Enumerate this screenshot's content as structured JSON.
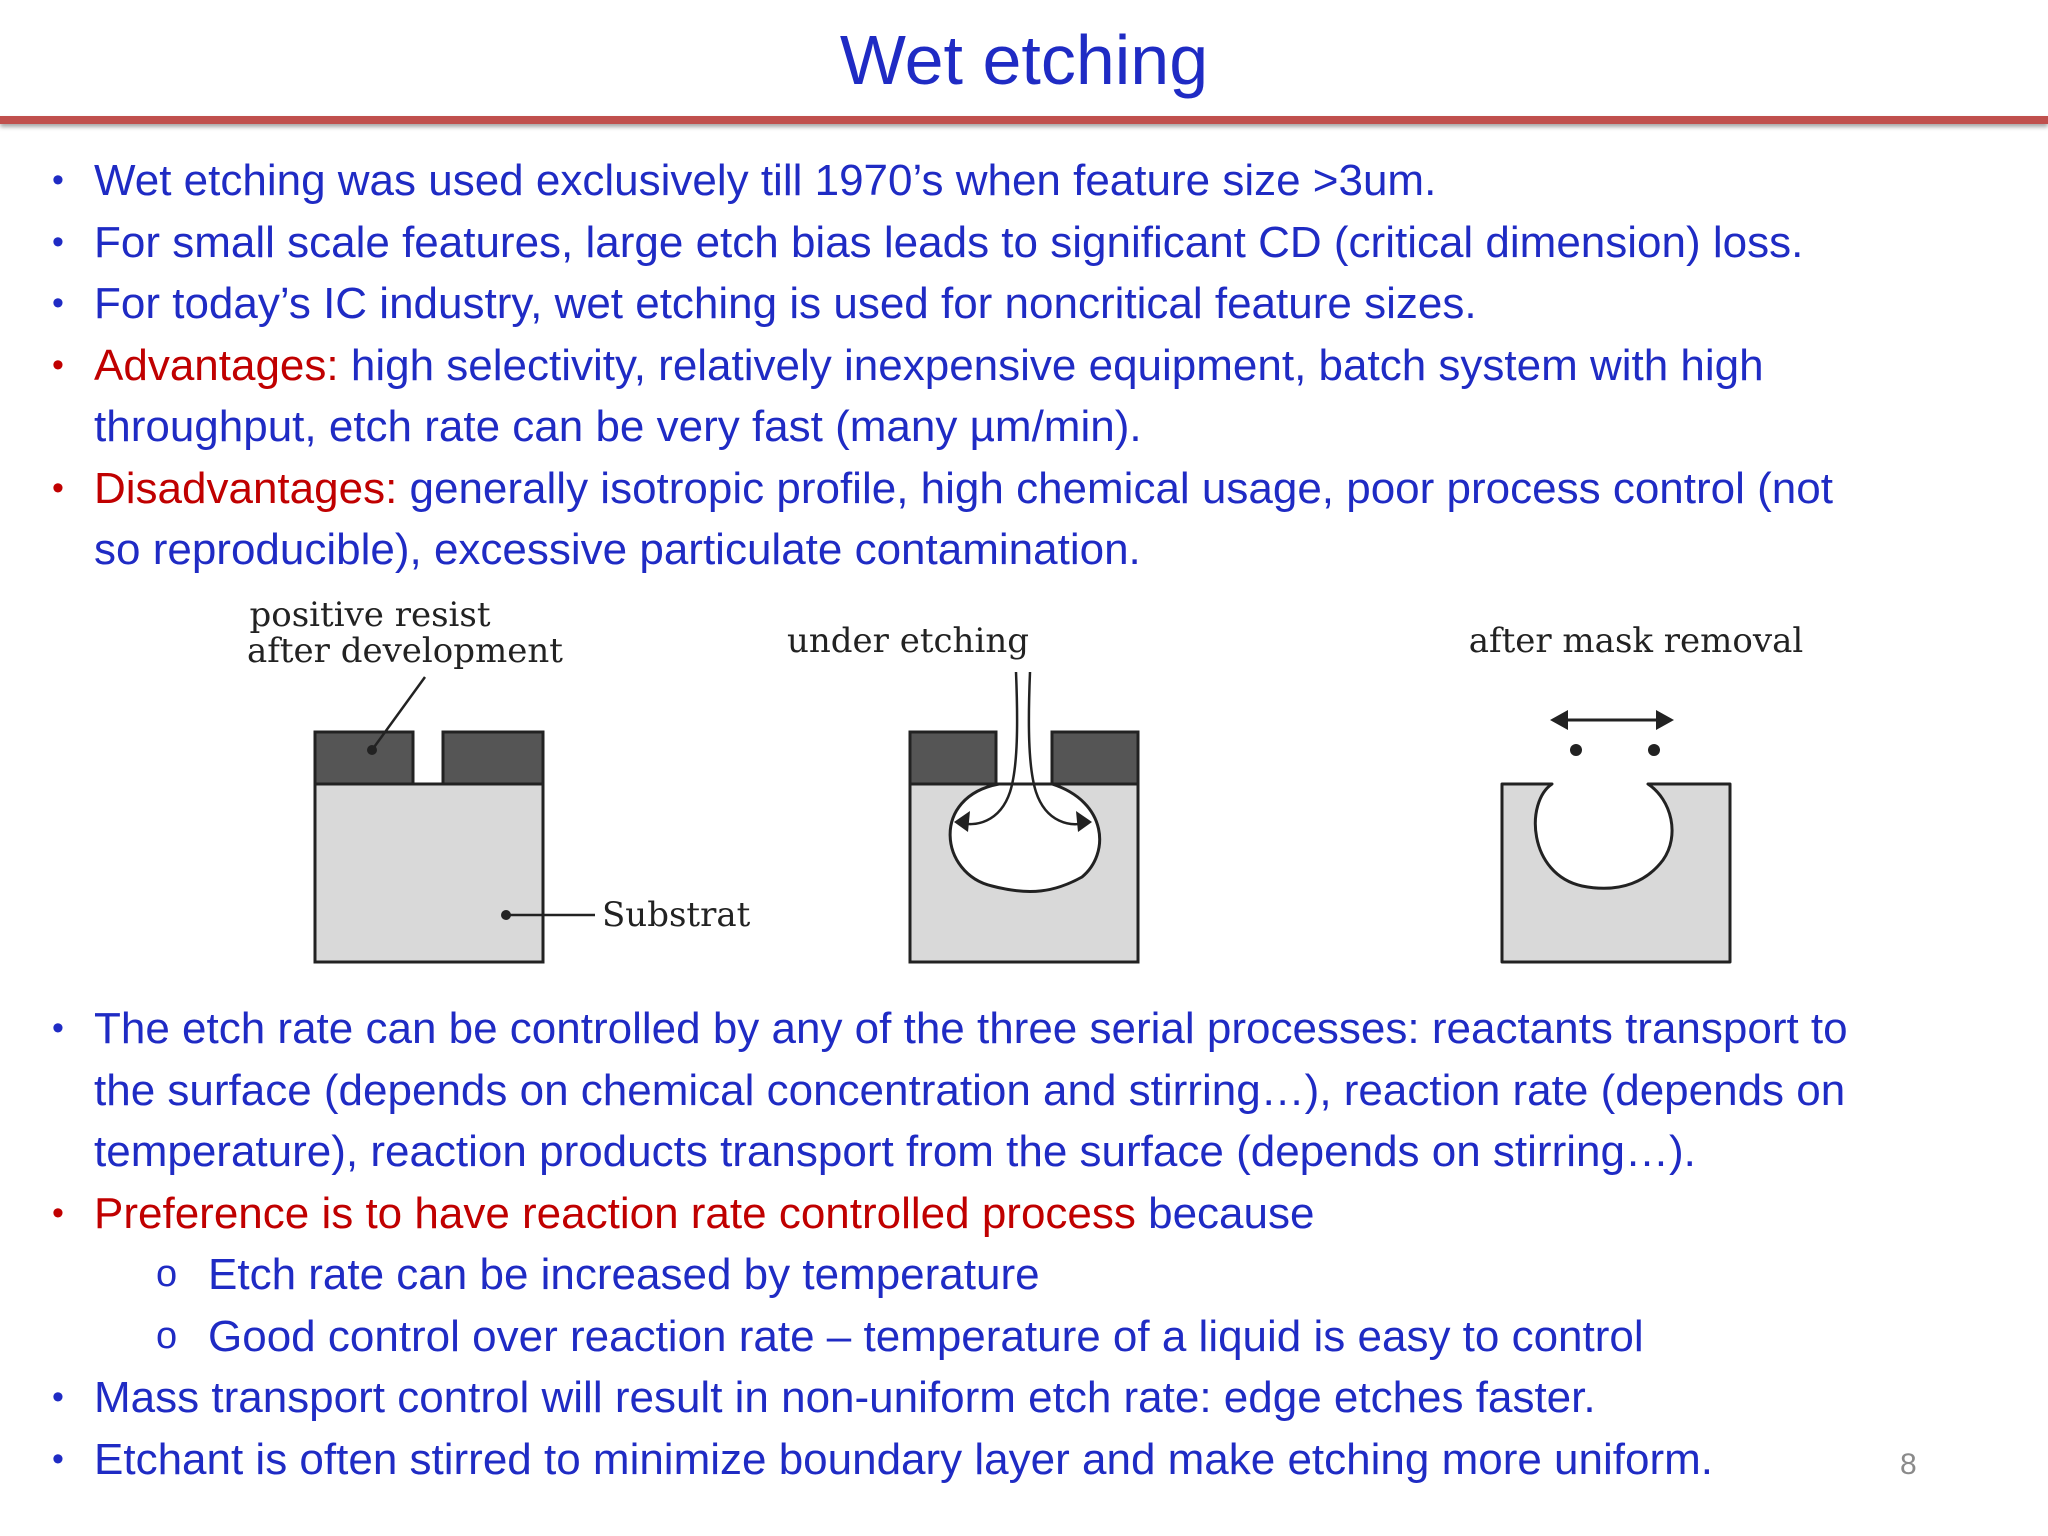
{
  "slide": {
    "title": "Wet etching",
    "page_number": "8"
  },
  "bullets_top": {
    "b1": "Wet etching was used exclusively till 1970’s when feature size >3um.",
    "b2": "For small scale features, large etch bias leads to significant CD (critical dimension) loss.",
    "b3": "For today’s IC industry, wet etching is used for noncritical feature sizes.",
    "b4_label": "Advantages:",
    "b4_line1": " high selectivity, relatively inexpensive equipment, batch system with high",
    "b4_line2": "throughput, etch rate can be very fast (many µm/min).",
    "b5_label": "Disadvantages:",
    "b5_line1": " generally isotropic profile, high chemical usage, poor process control (not",
    "b5_line2": "so reproducible), excessive particulate contamination."
  },
  "diagram": {
    "label_resist_line1": "positive  resist",
    "label_resist_line2": "after development",
    "label_substrate": "Substrat",
    "label_under_etching": "under etching",
    "label_after_mask": "after mask removal"
  },
  "bullets_bottom": {
    "b6_line1": "The etch rate can be controlled by any of the three serial processes: reactants transport to",
    "b6_line2": "the surface (depends on chemical concentration and stirring…), reaction rate (depends on",
    "b6_line3": "temperature), reaction products transport from the surface (depends on stirring…).",
    "b7_red": "Preference is to have reaction rate controlled process",
    "b7_rest": " because",
    "sub1": "Etch rate can be increased by temperature",
    "sub2": "Good control over reaction rate – temperature of a liquid is easy to control",
    "b8": "Mass transport control will result in non-uniform etch rate: edge etches faster.",
    "b9": "Etchant is often stirred to minimize boundary layer and make etching more uniform."
  },
  "colors": {
    "text_blue": "#1f2bc4",
    "accent_red": "#c00000",
    "rule_red": "#c0504d",
    "substrate_gray": "#d9d9d9",
    "resist_dark": "#555555"
  }
}
